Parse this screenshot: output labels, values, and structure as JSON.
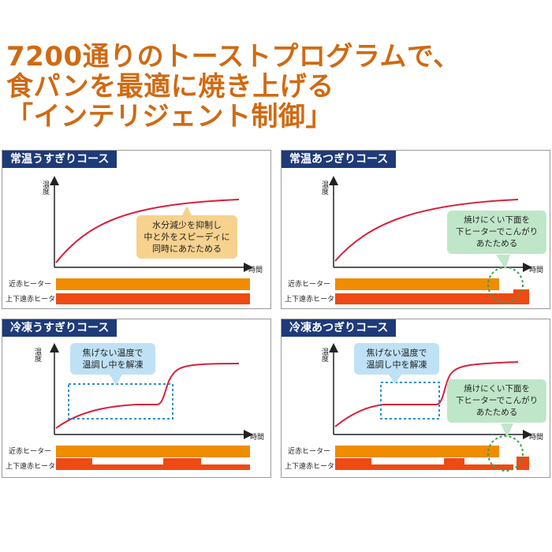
{
  "headline": {
    "line1": "7200通りのトーストプログラムで、",
    "line2": "食パンを最適に焼き上げる",
    "line3": "「インテリジェント制御」"
  },
  "axis": {
    "y_label": "温度",
    "x_label": "時間"
  },
  "heaters": {
    "near_ir": "近赤ヒーター",
    "far_ir": "上下遠赤ヒーター"
  },
  "colors": {
    "title_bg": "#1e3a78",
    "headline": "#d06a12",
    "curve": "#d8203a",
    "near_bar": "#f08c00",
    "far_bar": "#ee4a14",
    "dotted_blue": "#2a8fd0",
    "dotted_green": "#3aa050"
  },
  "panels": [
    {
      "title": "常温うすぎりコース",
      "callout": {
        "style": "orange",
        "lines": [
          "水分減少を抑制し",
          "中と外をスピーディに",
          "同時にあたためる"
        ]
      }
    },
    {
      "title": "常温あつぎりコース",
      "callout": {
        "style": "green",
        "lines": [
          "焼けにくい下面を",
          "下ヒーターでこんがり",
          "あたためる"
        ]
      }
    },
    {
      "title": "冷凍うすぎりコース",
      "callout": {
        "style": "blue",
        "lines": [
          "焦げない温度で",
          "温調し中を解凍"
        ]
      }
    },
    {
      "title": "冷凍あつぎりコース",
      "callout": {
        "style": "blue",
        "lines": [
          "焦げない温度で",
          "温調し中を解凍"
        ]
      },
      "callout2": {
        "style": "green",
        "lines": [
          "焼けにくい下面を",
          "下ヒーターでこんがり",
          "あたためる"
        ]
      }
    }
  ]
}
